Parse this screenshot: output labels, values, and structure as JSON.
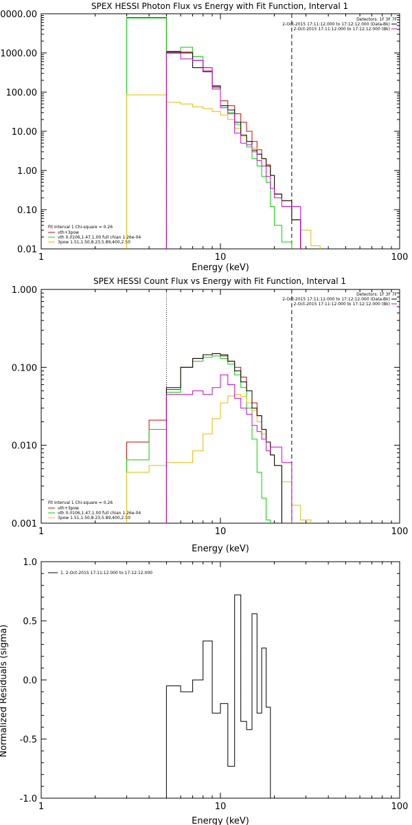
{
  "chart_data": [
    {
      "type": "line",
      "title": "SPEX HESSI Photon Flux vs Energy with Fit Function, Interval 1",
      "xlabel": "Energy (keV)",
      "ylabel": "",
      "xscale": "log",
      "yscale": "log",
      "xlim": [
        1,
        100
      ],
      "ylim": [
        0.01,
        10000
      ],
      "xticks": [
        "1",
        "10",
        "100"
      ],
      "yticks": [
        "0.01",
        "0.10",
        "1.00",
        "10.00",
        "100.00",
        "1000.00",
        "0000.00"
      ],
      "header": [
        "Detectors: 1F 3F 7F",
        "2-Oct-2015 17:11:12.000 to 17:12:12.000 (Data-Bk)",
        "2-Oct-2015 17:11:12.000 to 17:12:12.000 (Bk)"
      ],
      "fit_legend": [
        "Fit Interval 1   Chi-square = 0.26",
        "vth+3pow",
        "vth 0.0106,1.47,1.00  full chian 1.26e-04",
        "3pow 1.51,1.50,8.23,5.89,400,2.50"
      ],
      "fit_range_keV": [
        5,
        25
      ],
      "bin_edges": [
        3,
        4,
        5,
        6,
        7,
        8,
        9,
        10,
        11,
        12,
        13,
        14,
        15,
        16,
        17,
        18,
        19,
        20,
        22,
        25,
        28,
        32,
        36
      ],
      "series": [
        {
          "name": "vth+3pow",
          "color": "#cc0000",
          "values": [
            8000,
            8000,
            1100,
            1050,
            650,
            420,
            145,
            60,
            45,
            28,
            17,
            10,
            5.5,
            3.4,
            2.0,
            1.4,
            0.75,
            0.25,
            0.17,
            0.055,
            null,
            null
          ]
        },
        {
          "name": "vth",
          "color": "#00d000",
          "values": [
            7800,
            7800,
            980,
            1400,
            800,
            350,
            130,
            45,
            30,
            15,
            8,
            4,
            2.0,
            1.3,
            0.7,
            0.5,
            0.12,
            0.04,
            0.015,
            null,
            null,
            null
          ]
        },
        {
          "name": "3pow",
          "color": "#e6b800",
          "values": [
            85,
            85,
            55,
            50,
            42,
            38,
            32,
            26,
            20,
            12,
            7.5,
            5.5,
            3.7,
            2.6,
            2.0,
            1.3,
            0.75,
            0.25,
            0.17,
            0.055,
            0.03,
            0.012
          ]
        },
        {
          "name": "Data-Bk",
          "color": "#000000",
          "values": [
            null,
            null,
            1050,
            1000,
            420,
            330,
            140,
            45,
            35,
            17,
            8,
            5.5,
            3.3,
            2.6,
            2.0,
            1.3,
            0.75,
            0.25,
            0.17,
            0.055,
            null,
            null
          ]
        },
        {
          "name": "Bk",
          "color": "#cc00cc",
          "values": [
            null,
            null,
            1000,
            700,
            650,
            350,
            120,
            40,
            28,
            9,
            5,
            4.5,
            3.0,
            1.8,
            1.3,
            0.7,
            0.35,
            0.2,
            0.12,
            0.12,
            null,
            null
          ]
        }
      ]
    },
    {
      "type": "line",
      "title": "SPEX HESSI Count Flux vs Energy with Fit Function, Interval 1",
      "xlabel": "Energy (keV)",
      "ylabel": "",
      "xscale": "log",
      "yscale": "log",
      "xlim": [
        1,
        100
      ],
      "ylim": [
        0.001,
        1.0
      ],
      "xticks": [
        "1",
        "10",
        "100"
      ],
      "yticks": [
        "0.001",
        "0.010",
        "0.100",
        "1.000"
      ],
      "header": [
        "Detectors: 1F 3F 7F",
        "2-Oct-2015 17:11:12.000 to 17:12:12.000 (Data-Bk)",
        "2-Oct-2015 17:11:12.000 to 17:12:12.000 (Bk)"
      ],
      "fit_legend": [
        "Fit Interval 1   Chi-square = 0.26",
        "vth+3pow",
        "vth 0.0106,1.47,1.00  full chian 1.26e-04",
        "3pow 1.51,1.50,8.23,5.89,400,2.50"
      ],
      "fit_range_keV": [
        5,
        25
      ],
      "bin_edges": [
        3,
        4,
        5,
        6,
        7,
        8,
        9,
        10,
        11,
        12,
        13,
        14,
        15,
        16,
        17,
        18,
        19,
        20,
        22,
        25,
        28,
        32,
        36
      ],
      "series": [
        {
          "name": "vth+3pow",
          "color": "#cc0000",
          "values": [
            0.011,
            0.021,
            0.052,
            0.1,
            0.13,
            0.145,
            0.15,
            0.14,
            0.12,
            0.1,
            0.075,
            0.05,
            0.035,
            0.024,
            0.016,
            0.011,
            0.0075,
            0.0055,
            null,
            null,
            null,
            null
          ]
        },
        {
          "name": "vth",
          "color": "#00d000",
          "values": [
            0.0065,
            0.016,
            0.048,
            0.1,
            0.12,
            0.135,
            0.14,
            0.13,
            0.11,
            0.08,
            0.055,
            0.03,
            0.012,
            0.0045,
            0.0021,
            0.0011,
            null,
            null,
            null,
            null,
            null,
            null
          ]
        },
        {
          "name": "3pow",
          "color": "#e6b800",
          "values": [
            0.0045,
            0.0055,
            0.006,
            0.006,
            0.0085,
            0.014,
            0.022,
            0.035,
            0.043,
            0.045,
            0.042,
            0.035,
            0.028,
            0.02,
            0.014,
            0.011,
            0.0075,
            0.0055,
            0.0034,
            0.0017,
            0.0011,
            null
          ]
        },
        {
          "name": "Data-Bk",
          "color": "#000000",
          "values": [
            null,
            null,
            0.055,
            0.1,
            0.13,
            0.145,
            0.15,
            0.145,
            0.12,
            0.09,
            0.065,
            0.05,
            0.03,
            0.024,
            0.016,
            0.011,
            0.0075,
            0.0055,
            null,
            null,
            null,
            null
          ]
        },
        {
          "name": "Bk",
          "color": "#cc00cc",
          "values": [
            null,
            null,
            0.045,
            0.045,
            0.05,
            0.045,
            0.055,
            0.08,
            0.06,
            0.04,
            0.03,
            0.025,
            0.018,
            0.015,
            0.012,
            0.0085,
            0.0095,
            0.0095,
            0.006,
            null,
            null,
            null
          ]
        }
      ]
    },
    {
      "type": "line",
      "title": "",
      "xlabel": "Energy (keV)",
      "ylabel": "Normalized Residuals (sigma)",
      "xscale": "log",
      "yscale": "linear",
      "xlim": [
        1,
        100
      ],
      "ylim": [
        -1.0,
        1.0
      ],
      "xticks": [
        "1",
        "10",
        "100"
      ],
      "yticks": [
        "-1.0",
        "-0.5",
        "0.0",
        "0.5",
        "1.0"
      ],
      "legend": [
        "1. 2-Oct-2015 17:11:12.000 to 17:12:12.000"
      ],
      "bin_edges": [
        5,
        6,
        7,
        8,
        9,
        10,
        11,
        12,
        13,
        14,
        15,
        16,
        17,
        18,
        19,
        20,
        22,
        25
      ],
      "series": [
        {
          "name": "1. 2-Oct-2015 17:11:12.000 to 17:12:12.000",
          "color": "#000000",
          "values": [
            -0.05,
            -0.1,
            0.0,
            0.33,
            -0.28,
            -0.2,
            -0.73,
            0.72,
            -0.35,
            -0.42,
            0.56,
            -0.28,
            0.27,
            -0.23,
            null,
            null,
            null
          ]
        }
      ]
    }
  ]
}
